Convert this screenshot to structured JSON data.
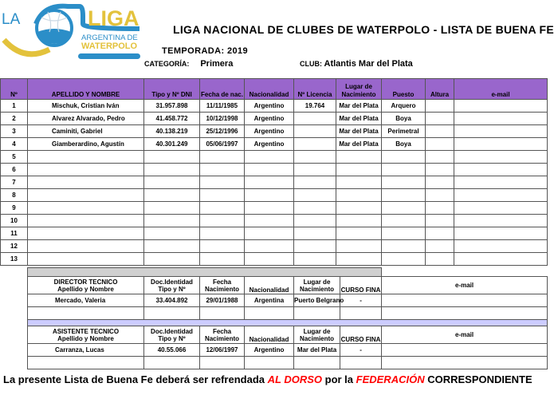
{
  "logo": {
    "text_la": "LA",
    "text_liga": "LIGA",
    "text_arg": "ARGENTINA DE",
    "text_wp": "WATERPOLO",
    "colors": {
      "blue": "#2b8ec8",
      "yellow": "#e3c23c"
    }
  },
  "header": {
    "title": "LIGA NACIONAL DE CLUBES DE WATERPOLO - LISTA DE BUENA FE",
    "temporada": "TEMPORADA: 2019",
    "categoria_label": "CATEGORÍA:",
    "categoria": "Primera",
    "club_label": "CLUB:",
    "club": "Atlantis Mar del Plata"
  },
  "players": {
    "header_color": "#9966cc",
    "columns": [
      "Nº",
      "APELLIDO Y NOMBRE",
      "Tipo y Nº DNI",
      "Fecha de nac.",
      "Nacionalidad",
      "Nº Licencia",
      "Lugar de Nacimiento",
      "Puesto",
      "Altura",
      "e-mail"
    ],
    "rows": [
      {
        "n": "1",
        "name": "Mischuk, Cristian Iván",
        "dni": "31.957.898",
        "fecha": "11/11/1985",
        "nac": "Argentino",
        "lic": "19.764",
        "lugar": "Mar del Plata",
        "puesto": "Arquero",
        "altura": "",
        "email": ""
      },
      {
        "n": "2",
        "name": "Alvarez Alvarado, Pedro",
        "dni": "41.458.772",
        "fecha": "10/12/1998",
        "nac": "Argentino",
        "lic": "",
        "lugar": "Mar del Plata",
        "puesto": "Boya",
        "altura": "",
        "email": ""
      },
      {
        "n": "3",
        "name": "Caminiti, Gabriel",
        "dni": "40.138.219",
        "fecha": "25/12/1996",
        "nac": "Argentino",
        "lic": "",
        "lugar": "Mar del Plata",
        "puesto": "Perimetral",
        "altura": "",
        "email": ""
      },
      {
        "n": "4",
        "name": "Giamberardino, Agustín",
        "dni": "40.301.249",
        "fecha": "05/06/1997",
        "nac": "Argentino",
        "lic": "",
        "lugar": "Mar del Plata",
        "puesto": "Boya",
        "altura": "",
        "email": ""
      },
      {
        "n": "5"
      },
      {
        "n": "6"
      },
      {
        "n": "7"
      },
      {
        "n": "8"
      },
      {
        "n": "9"
      },
      {
        "n": "10"
      },
      {
        "n": "11"
      },
      {
        "n": "12"
      },
      {
        "n": "13"
      }
    ]
  },
  "staff": {
    "director": {
      "role": "DIRECTOR TECNICO",
      "sub": "Apellido y Nombre",
      "doc": "Doc.Identidad",
      "doc2": "Tipo y Nº",
      "fecha": "Fecha",
      "fecha2": "Nacimiento",
      "nac": "Nacionalidad",
      "lugar": "Lugar de",
      "lugar2": "Nacimiento",
      "curso": "CURSO FINA",
      "email": "e-mail",
      "row": {
        "name": "Mercado, Valeria",
        "dni": "33.404.892",
        "fecha": "29/01/1988",
        "nac": "Argentina",
        "lugar": "Puerto Belgrano",
        "curso": "-"
      }
    },
    "asistente": {
      "role": "ASISTENTE TECNICO",
      "sub": "Apellido y Nombre",
      "doc": "Doc.Identidad",
      "doc2": "Tipo y Nº",
      "fecha": "Fecha",
      "fecha2": "Nacimiento",
      "nac": "Nacionalidad",
      "lugar": "Lugar de",
      "lugar2": "Nacimiento",
      "curso": "CURSO FINA",
      "email": "e-mail",
      "row": {
        "name": "Carranza, Lucas",
        "dni": "40.55.066",
        "fecha": "12/06/1997",
        "nac": "Argentino",
        "lugar": "Mar del Plata",
        "curso": "-"
      }
    }
  },
  "footer": {
    "part1": "La presente Lista de Buena Fe deberá ser refrendada ",
    "part2": "AL DORSO",
    "part3": " por la ",
    "part4": "FEDERACIÓN",
    "part5": "  CORRESPONDIENTE"
  }
}
